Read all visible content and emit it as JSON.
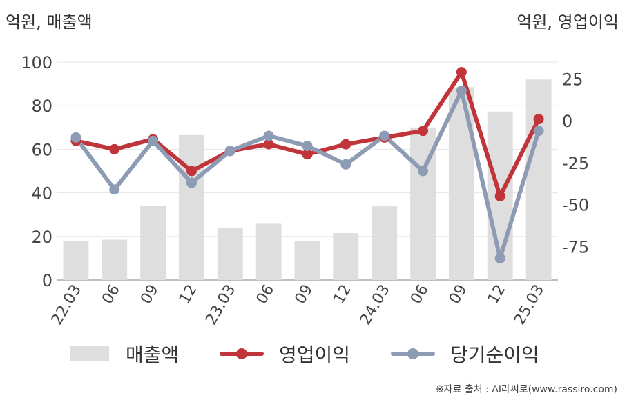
{
  "unit_left": "억원, 매출액",
  "unit_right": "억원, 영업이익",
  "source": "※자료 출처 : AI라씨로(www.rassiro.com)",
  "legend": [
    {
      "label": "매출액",
      "kind": "bar",
      "color": "#dedede"
    },
    {
      "label": "영업이익",
      "kind": "line",
      "color": "#c0343a"
    },
    {
      "label": "당기순이익",
      "kind": "line",
      "color": "#8e9bb5"
    }
  ],
  "chart_data": {
    "type": "bar",
    "categories": [
      "22.03",
      "06",
      "09",
      "12",
      "23.03",
      "06",
      "09",
      "12",
      "24.03",
      "06",
      "09",
      "12",
      "25.03"
    ],
    "left_axis": {
      "ylim": [
        0,
        100
      ],
      "ticks": [
        0,
        20,
        40,
        60,
        80,
        100
      ]
    },
    "right_axis": {
      "ylim": [
        -95,
        35
      ],
      "ticks": [
        -75,
        -50,
        -25,
        0,
        25
      ],
      "tick_labels": [
        "-75",
        "-50",
        "-25",
        "0",
        "25"
      ]
    },
    "grid": true,
    "legend_position": "bottom",
    "series": [
      {
        "name": "매출액",
        "type": "bar",
        "axis": "left",
        "color": "#dedede",
        "values": [
          18,
          18.5,
          34,
          66.5,
          24,
          25.8,
          18,
          21.5,
          33.8,
          70,
          88.5,
          77.3,
          92
        ]
      },
      {
        "name": "영업이익",
        "type": "line",
        "axis": "right",
        "color": "#c0343a",
        "values": [
          -12,
          -17,
          -11,
          -30,
          -18,
          -14,
          -20,
          -14,
          -10,
          -6,
          29,
          -45,
          1
        ]
      },
      {
        "name": "당기순이익",
        "type": "line",
        "axis": "right",
        "color": "#8e9bb5",
        "values": [
          -10,
          -41,
          -12,
          -37,
          -18,
          -9,
          -15,
          -26,
          -9,
          -30,
          18,
          -82,
          -6
        ]
      }
    ]
  }
}
